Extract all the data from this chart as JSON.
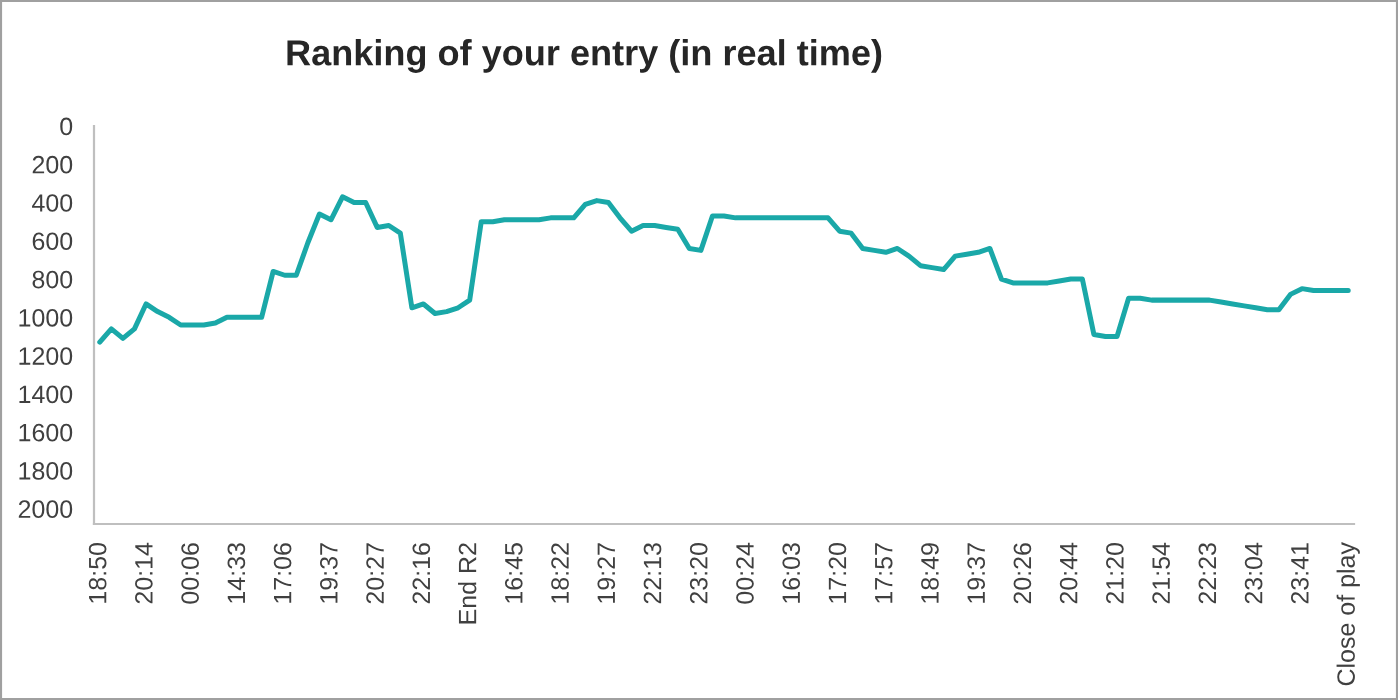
{
  "chart_data": {
    "type": "line",
    "title": "Ranking of your entry (in real time)",
    "categories": [
      "18:50",
      null,
      null,
      null,
      "20:14",
      null,
      null,
      null,
      "00:06",
      null,
      null,
      null,
      "14:33",
      null,
      null,
      null,
      "17:06",
      null,
      null,
      null,
      "19:37",
      null,
      null,
      null,
      "20:27",
      null,
      null,
      null,
      "22:16",
      null,
      null,
      null,
      "End R2",
      null,
      null,
      null,
      "16:45",
      null,
      null,
      null,
      "18:22",
      null,
      null,
      null,
      "19:27",
      null,
      null,
      null,
      "22:13",
      null,
      null,
      null,
      "23:20",
      null,
      null,
      null,
      "00:24",
      null,
      null,
      null,
      "16:03",
      null,
      null,
      null,
      "17:20",
      null,
      null,
      null,
      "17:57",
      null,
      null,
      null,
      "18:49",
      null,
      null,
      null,
      "19:37",
      null,
      null,
      null,
      "20:26",
      null,
      null,
      null,
      "20:44",
      null,
      null,
      null,
      "21:20",
      null,
      null,
      null,
      "21:54",
      null,
      null,
      null,
      "22:23",
      null,
      null,
      null,
      "23:04",
      null,
      null,
      null,
      "23:41",
      null,
      null,
      null,
      "Close of play"
    ],
    "series": [
      {
        "color": "#1aa8a8",
        "values": [
          1130,
          1060,
          1110,
          1060,
          930,
          970,
          1000,
          1040,
          1040,
          1040,
          1030,
          1000,
          1000,
          1000,
          1000,
          760,
          780,
          780,
          610,
          460,
          490,
          370,
          400,
          400,
          530,
          520,
          560,
          950,
          930,
          980,
          970,
          950,
          910,
          500,
          500,
          490,
          490,
          490,
          490,
          480,
          480,
          480,
          410,
          390,
          400,
          480,
          550,
          520,
          520,
          530,
          540,
          640,
          650,
          470,
          470,
          480,
          480,
          480,
          480,
          480,
          480,
          480,
          480,
          480,
          550,
          560,
          640,
          650,
          660,
          640,
          680,
          730,
          740,
          750,
          680,
          670,
          660,
          640,
          800,
          820,
          820,
          820,
          820,
          810,
          800,
          800,
          1090,
          1100,
          1100,
          900,
          900,
          910,
          910,
          910,
          910,
          910,
          910,
          920,
          930,
          940,
          950,
          960,
          960,
          880,
          850,
          860,
          860,
          860,
          860
        ]
      }
    ],
    "ylim": [
      2080,
      0
    ],
    "yticks": [
      0,
      200,
      400,
      600,
      800,
      1000,
      1200,
      1400,
      1600,
      1800,
      2000
    ],
    "grid": false,
    "legend": false,
    "marker": "none",
    "line_style": "solid"
  }
}
